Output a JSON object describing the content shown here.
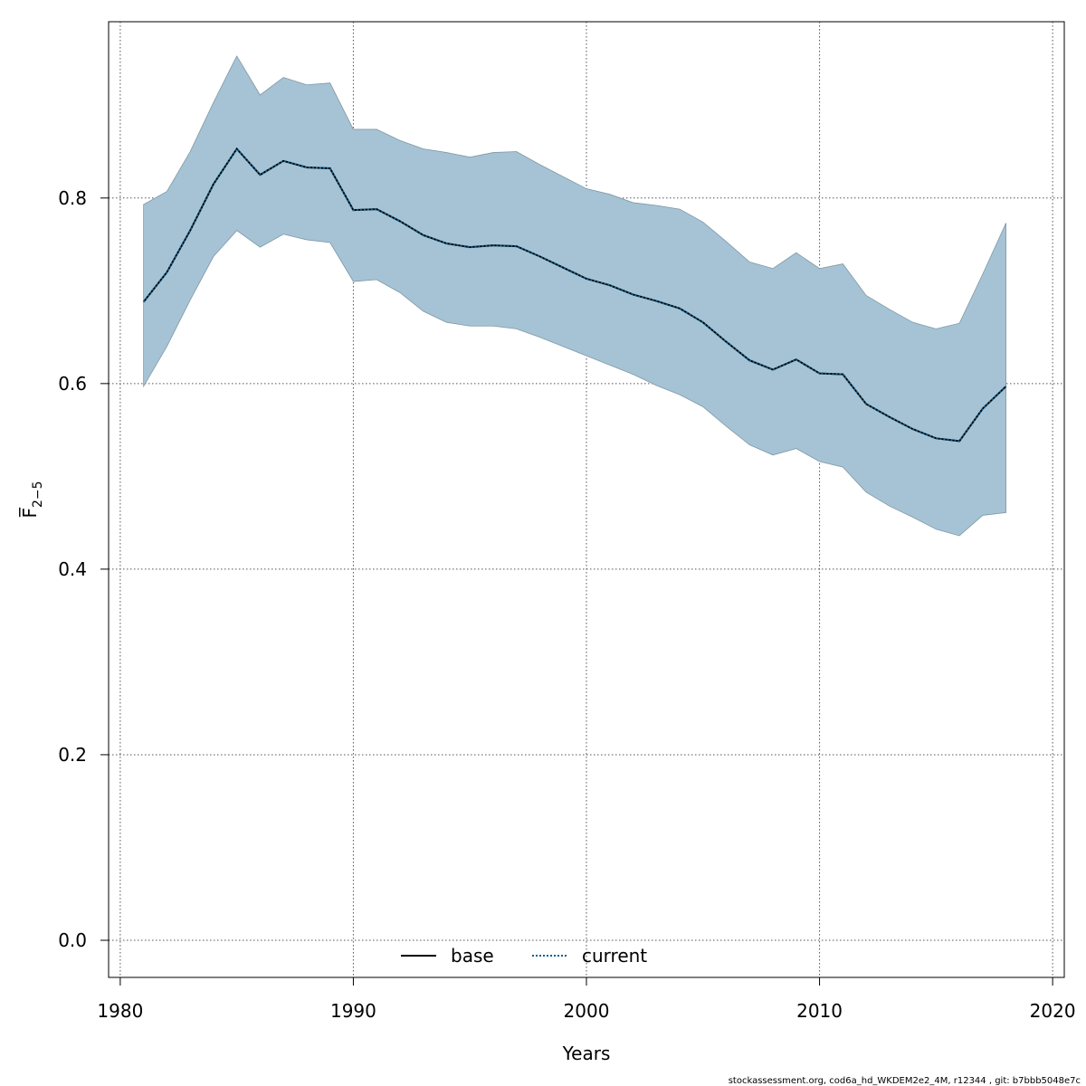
{
  "chart_data": {
    "type": "line",
    "xlabel": "Years",
    "ylabel": "F̅",
    "ylabel_subscript": "2−5",
    "xlim": [
      1979.5,
      2020.5
    ],
    "ylim": [
      -0.04,
      0.99
    ],
    "xticks": [
      1980,
      1990,
      2000,
      2010,
      2020
    ],
    "yticks": [
      0.0,
      0.2,
      0.4,
      0.6,
      0.8
    ],
    "xtick_labels": [
      "1980",
      "1990",
      "2000",
      "2010",
      "2020"
    ],
    "ytick_labels": [
      "0.0",
      "0.2",
      "0.4",
      "0.6",
      "0.8"
    ],
    "grid": true,
    "legend": {
      "position": "bottom-center",
      "entries": [
        {
          "label": "base",
          "style": "solid",
          "color": "#000000"
        },
        {
          "label": "current",
          "style": "dotted",
          "color": "#0f5d8e"
        }
      ]
    },
    "x": [
      1981,
      1982,
      1983,
      1984,
      1985,
      1986,
      1987,
      1988,
      1989,
      1990,
      1991,
      1992,
      1993,
      1994,
      1995,
      1996,
      1997,
      1998,
      1999,
      2000,
      2001,
      2002,
      2003,
      2004,
      2005,
      2006,
      2007,
      2008,
      2009,
      2010,
      2011,
      2012,
      2013,
      2014,
      2015,
      2016,
      2017,
      2018
    ],
    "series": [
      {
        "name": "base",
        "values": [
          0.688,
          0.72,
          0.765,
          0.815,
          0.853,
          0.825,
          0.84,
          0.833,
          0.832,
          0.787,
          0.788,
          0.775,
          0.76,
          0.751,
          0.747,
          0.749,
          0.748,
          0.737,
          0.725,
          0.713,
          0.706,
          0.696,
          0.689,
          0.681,
          0.666,
          0.645,
          0.625,
          0.615,
          0.626,
          0.611,
          0.61,
          0.578,
          0.564,
          0.551,
          0.541,
          0.538,
          0.573,
          0.597
        ]
      },
      {
        "name": "current",
        "values": [
          0.688,
          0.72,
          0.765,
          0.815,
          0.853,
          0.825,
          0.84,
          0.833,
          0.832,
          0.787,
          0.788,
          0.775,
          0.76,
          0.751,
          0.747,
          0.749,
          0.748,
          0.737,
          0.725,
          0.713,
          0.706,
          0.696,
          0.689,
          0.681,
          0.666,
          0.645,
          0.625,
          0.615,
          0.626,
          0.611,
          0.61,
          0.578,
          0.564,
          0.551,
          0.541,
          0.538,
          0.573,
          0.597
        ]
      }
    ],
    "band": {
      "lower": [
        0.597,
        0.64,
        0.69,
        0.737,
        0.765,
        0.747,
        0.761,
        0.755,
        0.752,
        0.71,
        0.712,
        0.698,
        0.678,
        0.666,
        0.662,
        0.662,
        0.659,
        0.65,
        0.64,
        0.63,
        0.62,
        0.61,
        0.598,
        0.588,
        0.575,
        0.554,
        0.534,
        0.523,
        0.53,
        0.516,
        0.51,
        0.483,
        0.468,
        0.456,
        0.443,
        0.436,
        0.458,
        0.461
      ],
      "upper": [
        0.793,
        0.807,
        0.85,
        0.903,
        0.953,
        0.911,
        0.93,
        0.922,
        0.924,
        0.874,
        0.874,
        0.862,
        0.853,
        0.849,
        0.844,
        0.849,
        0.85,
        0.836,
        0.823,
        0.81,
        0.804,
        0.795,
        0.792,
        0.788,
        0.774,
        0.753,
        0.731,
        0.724,
        0.741,
        0.724,
        0.729,
        0.695,
        0.68,
        0.666,
        0.659,
        0.665,
        0.718,
        0.773
      ],
      "color": "#a5c3d4"
    }
  },
  "footer": {
    "note": "stockassessment.org, cod6a_hd_WKDEM2e2_4M, r12344 , git: b7bbb5048e7c"
  }
}
